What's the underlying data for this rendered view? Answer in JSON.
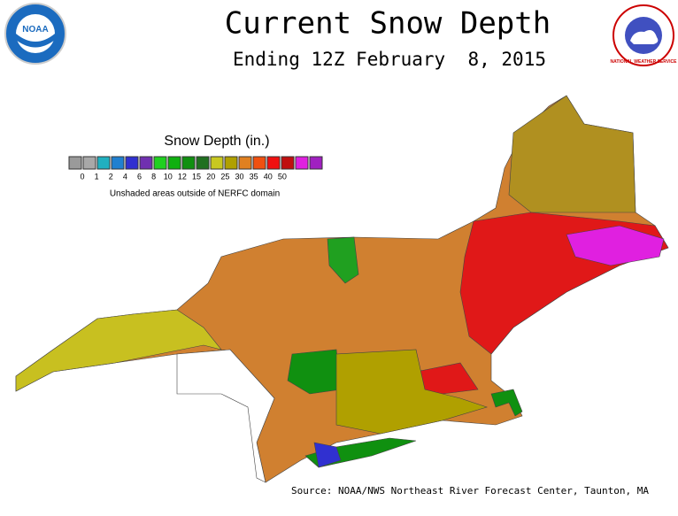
{
  "header": {
    "title": "Current Snow Depth",
    "subtitle": "Ending 12Z February  8, 2015"
  },
  "logos": {
    "noaa": "NOAA",
    "nws": "NATIONAL WEATHER SERVICE"
  },
  "legend": {
    "title": "Snow Depth (in.)",
    "colors": [
      "#9a9a9a",
      "#a8a8a8",
      "#20b0c0",
      "#2080d0",
      "#3030d0",
      "#7030b0",
      "#20d020",
      "#10b010",
      "#109010",
      "#207020",
      "#c8c820",
      "#b0a000",
      "#e08020",
      "#f05010",
      "#f01010",
      "#c01010",
      "#e020e0",
      "#a020c0"
    ],
    "labels": [
      "0",
      "1",
      "2",
      "4",
      "6",
      "8",
      "10",
      "12",
      "15",
      "20",
      "25",
      "30",
      "35",
      "40",
      "50"
    ],
    "note": "Unshaded areas outside of NERFC domain"
  },
  "footer": {
    "source": "Source: NOAA/NWS Northeast River Forecast Center, Taunton, MA"
  }
}
